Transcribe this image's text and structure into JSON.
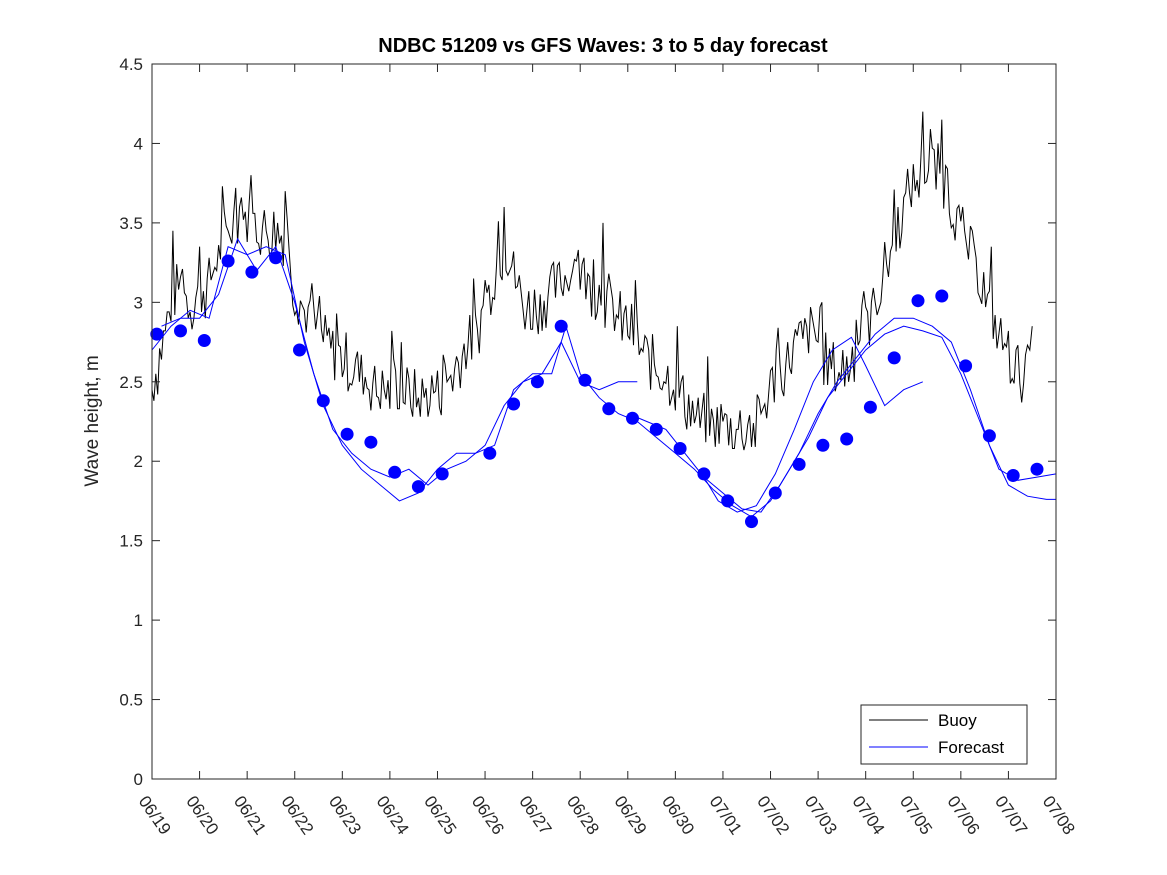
{
  "chart_data": {
    "type": "line",
    "title": "NDBC 51209 vs GFS Waves: 3 to 5 day forecast",
    "xlabel": "",
    "ylabel": "Wave height, m",
    "xlim": [
      "06/19",
      "07/08"
    ],
    "ylim": [
      0,
      4.5
    ],
    "x_ticks": [
      "06/19",
      "06/20",
      "06/21",
      "06/22",
      "06/23",
      "06/24",
      "06/25",
      "06/26",
      "06/27",
      "06/28",
      "06/29",
      "06/30",
      "07/01",
      "07/02",
      "07/03",
      "07/04",
      "07/05",
      "07/06",
      "07/07",
      "07/08"
    ],
    "y_ticks": [
      "0",
      "0.5",
      "1",
      "1.5",
      "2",
      "2.5",
      "3",
      "3.5",
      "4",
      "4.5"
    ],
    "grid": false,
    "legend": {
      "position": "bottom-right",
      "entries": [
        "Buoy",
        "Forecast"
      ]
    },
    "colors": {
      "buoy": "#000000",
      "forecast": "#0000ff"
    },
    "series": [
      {
        "name": "Buoy",
        "style": "line",
        "note": "hourly observations shown as noisy envelope around this trend",
        "points": [
          [
            0.0,
            2.45
          ],
          [
            0.2,
            2.7
          ],
          [
            0.4,
            3.0
          ],
          [
            0.6,
            3.1
          ],
          [
            0.8,
            3.0
          ],
          [
            1.0,
            3.05
          ],
          [
            1.2,
            3.1
          ],
          [
            1.4,
            3.3
          ],
          [
            1.6,
            3.45
          ],
          [
            1.8,
            3.55
          ],
          [
            2.0,
            3.5
          ],
          [
            2.2,
            3.5
          ],
          [
            2.4,
            3.45
          ],
          [
            2.6,
            3.45
          ],
          [
            2.8,
            3.4
          ],
          [
            3.0,
            3.1
          ],
          [
            3.2,
            2.95
          ],
          [
            3.4,
            2.85
          ],
          [
            3.6,
            2.75
          ],
          [
            3.8,
            2.7
          ],
          [
            4.0,
            2.65
          ],
          [
            4.2,
            2.6
          ],
          [
            4.4,
            2.55
          ],
          [
            4.6,
            2.5
          ],
          [
            4.8,
            2.45
          ],
          [
            5.0,
            2.45
          ],
          [
            5.2,
            2.45
          ],
          [
            5.4,
            2.4
          ],
          [
            5.6,
            2.4
          ],
          [
            5.8,
            2.4
          ],
          [
            6.0,
            2.45
          ],
          [
            6.2,
            2.5
          ],
          [
            6.4,
            2.6
          ],
          [
            6.6,
            2.7
          ],
          [
            6.8,
            2.8
          ],
          [
            7.0,
            2.95
          ],
          [
            7.2,
            3.2
          ],
          [
            7.4,
            3.35
          ],
          [
            7.6,
            3.2
          ],
          [
            7.8,
            2.95
          ],
          [
            8.0,
            2.95
          ],
          [
            8.2,
            3.0
          ],
          [
            8.4,
            3.05
          ],
          [
            8.6,
            3.15
          ],
          [
            8.8,
            3.2
          ],
          [
            9.0,
            3.2
          ],
          [
            9.2,
            3.1
          ],
          [
            9.4,
            3.05
          ],
          [
            9.6,
            3.0
          ],
          [
            9.8,
            2.9
          ],
          [
            10.0,
            2.85
          ],
          [
            10.2,
            2.75
          ],
          [
            10.4,
            2.65
          ],
          [
            10.6,
            2.6
          ],
          [
            10.8,
            2.55
          ],
          [
            11.0,
            2.5
          ],
          [
            11.2,
            2.4
          ],
          [
            11.4,
            2.3
          ],
          [
            11.6,
            2.25
          ],
          [
            11.8,
            2.2
          ],
          [
            12.0,
            2.25
          ],
          [
            12.2,
            2.2
          ],
          [
            12.4,
            2.2
          ],
          [
            12.6,
            2.15
          ],
          [
            12.8,
            2.3
          ],
          [
            13.0,
            2.45
          ],
          [
            13.2,
            2.55
          ],
          [
            13.4,
            2.65
          ],
          [
            13.6,
            2.75
          ],
          [
            13.8,
            2.8
          ],
          [
            14.0,
            2.75
          ],
          [
            14.2,
            2.6
          ],
          [
            14.4,
            2.55
          ],
          [
            14.6,
            2.6
          ],
          [
            14.8,
            2.7
          ],
          [
            15.0,
            2.85
          ],
          [
            15.2,
            3.0
          ],
          [
            15.4,
            3.2
          ],
          [
            15.6,
            3.4
          ],
          [
            15.8,
            3.6
          ],
          [
            16.0,
            3.75
          ],
          [
            16.2,
            3.8
          ],
          [
            16.4,
            3.85
          ],
          [
            16.6,
            3.8
          ],
          [
            16.8,
            3.65
          ],
          [
            17.0,
            3.45
          ],
          [
            17.2,
            3.3
          ],
          [
            17.4,
            3.15
          ],
          [
            17.6,
            2.95
          ],
          [
            17.8,
            2.8
          ],
          [
            18.0,
            2.7
          ],
          [
            18.2,
            2.55
          ],
          [
            18.4,
            2.55
          ],
          [
            18.5,
            2.85
          ]
        ],
        "max_spikes": [
          [
            1.0,
            3.35
          ],
          [
            2.1,
            3.8
          ],
          [
            2.8,
            3.7
          ],
          [
            7.4,
            3.6
          ],
          [
            9.5,
            3.5
          ],
          [
            16.2,
            4.2
          ],
          [
            16.6,
            4.15
          ]
        ]
      },
      {
        "name": "Forecast",
        "style": "markers",
        "points": [
          [
            0.1,
            2.8
          ],
          [
            0.6,
            2.82
          ],
          [
            1.1,
            2.76
          ],
          [
            1.6,
            3.26
          ],
          [
            2.1,
            3.19
          ],
          [
            2.6,
            3.28
          ],
          [
            3.1,
            2.7
          ],
          [
            3.6,
            2.38
          ],
          [
            4.1,
            2.17
          ],
          [
            4.6,
            2.12
          ],
          [
            5.1,
            1.93
          ],
          [
            5.6,
            1.84
          ],
          [
            6.1,
            1.92
          ],
          [
            7.1,
            2.05
          ],
          [
            7.6,
            2.36
          ],
          [
            8.1,
            2.5
          ],
          [
            8.6,
            2.85
          ],
          [
            9.1,
            2.51
          ],
          [
            9.6,
            2.33
          ],
          [
            10.1,
            2.27
          ],
          [
            10.6,
            2.2
          ],
          [
            11.1,
            2.08
          ],
          [
            11.6,
            1.92
          ],
          [
            12.1,
            1.75
          ],
          [
            12.6,
            1.62
          ],
          [
            13.1,
            1.8
          ],
          [
            13.6,
            1.98
          ],
          [
            14.1,
            2.1
          ],
          [
            14.6,
            2.14
          ],
          [
            15.1,
            2.34
          ],
          [
            15.6,
            2.65
          ],
          [
            16.1,
            3.01
          ],
          [
            16.6,
            3.04
          ],
          [
            17.1,
            2.6
          ],
          [
            17.6,
            2.16
          ],
          [
            18.1,
            1.91
          ],
          [
            18.6,
            1.95
          ]
        ]
      },
      {
        "name": "",
        "style": "line",
        "points": [
          [
            0.0,
            2.7
          ],
          [
            0.4,
            2.85
          ],
          [
            0.8,
            2.95
          ],
          [
            1.2,
            2.9
          ],
          [
            1.6,
            3.35
          ],
          [
            2.0,
            3.3
          ],
          [
            2.4,
            3.35
          ],
          [
            2.8,
            3.3
          ],
          [
            3.2,
            2.75
          ],
          [
            3.6,
            2.35
          ],
          [
            4.0,
            2.1
          ],
          [
            4.4,
            1.95
          ],
          [
            4.8,
            1.85
          ],
          [
            5.2,
            1.75
          ],
          [
            5.6,
            1.8
          ],
          [
            6.0,
            1.95
          ],
          [
            6.4,
            2.05
          ],
          [
            6.8,
            2.05
          ],
          [
            7.2,
            2.1
          ],
          [
            7.6,
            2.45
          ],
          [
            8.0,
            2.55
          ],
          [
            8.4,
            2.55
          ],
          [
            8.7,
            2.85
          ],
          [
            9.0,
            2.55
          ],
          [
            9.4,
            2.4
          ],
          [
            9.8,
            2.3
          ],
          [
            10.2,
            2.25
          ],
          [
            10.6,
            2.15
          ],
          [
            11.0,
            2.05
          ],
          [
            11.4,
            1.95
          ],
          [
            11.8,
            1.82
          ],
          [
            12.2,
            1.72
          ],
          [
            12.6,
            1.65
          ],
          [
            13.0,
            1.75
          ],
          [
            13.4,
            1.95
          ],
          [
            13.8,
            2.15
          ],
          [
            14.2,
            2.4
          ],
          [
            14.6,
            2.55
          ],
          [
            15.0,
            2.7
          ],
          [
            15.4,
            2.8
          ],
          [
            15.8,
            2.85
          ],
          [
            16.2,
            2.82
          ],
          [
            16.6,
            2.78
          ],
          [
            17.0,
            2.55
          ],
          [
            17.4,
            2.25
          ],
          [
            17.8,
            1.95
          ],
          [
            18.2,
            1.88
          ],
          [
            18.6,
            1.9
          ],
          [
            19.0,
            1.92
          ]
        ]
      },
      {
        "name": "",
        "style": "line",
        "points": [
          [
            0.2,
            2.85
          ],
          [
            0.6,
            2.9
          ],
          [
            1.0,
            2.9
          ],
          [
            1.4,
            3.05
          ],
          [
            1.8,
            3.4
          ],
          [
            2.2,
            3.2
          ],
          [
            2.6,
            3.35
          ],
          [
            3.0,
            3.0
          ],
          [
            3.4,
            2.55
          ],
          [
            3.8,
            2.2
          ],
          [
            4.2,
            2.05
          ],
          [
            4.6,
            1.95
          ],
          [
            5.0,
            1.9
          ],
          [
            5.4,
            1.95
          ],
          [
            5.8,
            1.85
          ],
          [
            6.2,
            1.95
          ],
          [
            6.6,
            2.0
          ],
          [
            7.0,
            2.1
          ],
          [
            7.4,
            2.35
          ],
          [
            7.8,
            2.5
          ],
          [
            8.2,
            2.55
          ],
          [
            8.6,
            2.75
          ],
          [
            9.0,
            2.5
          ],
          [
            9.4,
            2.45
          ],
          [
            9.8,
            2.5
          ],
          [
            10.2,
            2.5
          ]
        ]
      },
      {
        "name": "",
        "style": "line",
        "points": [
          [
            10.0,
            2.3
          ],
          [
            10.4,
            2.25
          ],
          [
            10.8,
            2.2
          ],
          [
            11.2,
            2.05
          ],
          [
            11.6,
            1.9
          ],
          [
            12.0,
            1.8
          ],
          [
            12.4,
            1.7
          ],
          [
            12.8,
            1.68
          ],
          [
            13.2,
            1.85
          ],
          [
            13.6,
            2.05
          ],
          [
            14.0,
            2.3
          ],
          [
            14.4,
            2.5
          ],
          [
            14.8,
            2.65
          ],
          [
            15.2,
            2.8
          ],
          [
            15.6,
            2.9
          ],
          [
            16.0,
            2.9
          ],
          [
            16.4,
            2.85
          ],
          [
            16.8,
            2.75
          ],
          [
            17.2,
            2.45
          ],
          [
            17.6,
            2.1
          ],
          [
            18.0,
            1.85
          ],
          [
            18.4,
            1.78
          ],
          [
            18.8,
            1.76
          ],
          [
            19.0,
            1.76
          ]
        ]
      },
      {
        "name": "",
        "style": "line",
        "points": [
          [
            11.5,
            1.95
          ],
          [
            11.9,
            1.75
          ],
          [
            12.3,
            1.68
          ],
          [
            12.7,
            1.72
          ],
          [
            13.1,
            1.92
          ],
          [
            13.5,
            2.2
          ],
          [
            13.9,
            2.5
          ],
          [
            14.3,
            2.7
          ],
          [
            14.7,
            2.78
          ],
          [
            15.0,
            2.6
          ],
          [
            15.4,
            2.35
          ],
          [
            15.8,
            2.45
          ],
          [
            16.2,
            2.5
          ]
        ]
      }
    ]
  }
}
